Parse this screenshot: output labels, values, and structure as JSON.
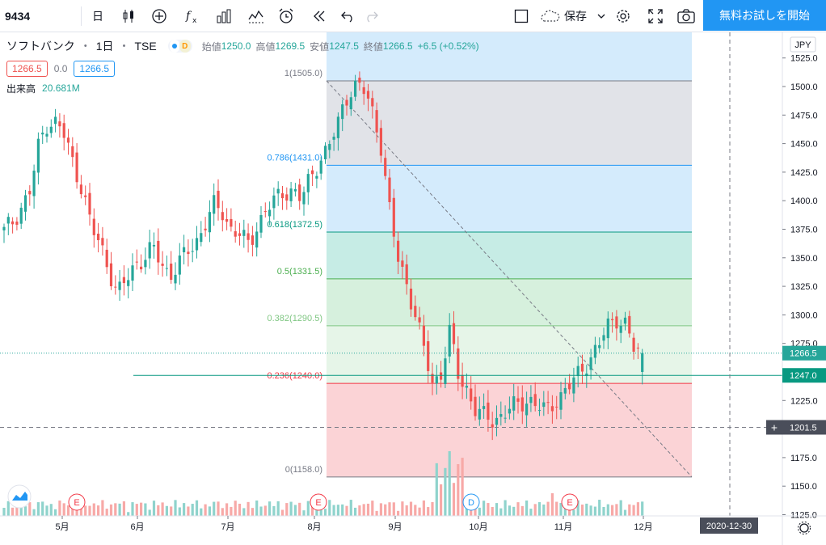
{
  "toolbar": {
    "symbol": "9434",
    "interval": "日",
    "save_label": "保存",
    "trial_label": "無料お試しを開始"
  },
  "legend": {
    "name": "ソフトバンク",
    "interval": "1日",
    "exchange": "TSE",
    "delay_badge": "D",
    "open_label": "始値",
    "open": "1250.0",
    "high_label": "高値",
    "high": "1269.5",
    "low_label": "安値",
    "low": "1247.5",
    "close_label": "終値",
    "close": "1266.5",
    "change": "+6.5 (+0.52%)",
    "bid": "1266.5",
    "spread": "0.0",
    "ask": "1266.5",
    "volume_label": "出来高",
    "volume": "20.681M"
  },
  "price_axis": {
    "currency": "JPY",
    "ticks": [
      "1525.0",
      "1500.0",
      "1475.0",
      "1450.0",
      "1425.0",
      "1400.0",
      "1375.0",
      "1350.0",
      "1325.0",
      "1300.0",
      "1275.0",
      "1250.0",
      "1225.0",
      "1200.0",
      "1175.0",
      "1150.0",
      "1125.0"
    ],
    "last_price": "1266.5",
    "line_price": "1247.0",
    "crosshair_price": "1201.5"
  },
  "time_axis": {
    "ticks": [
      "5月",
      "6月",
      "7月",
      "8月",
      "9月",
      "10月",
      "11月",
      "12月"
    ],
    "crosshair_date": "2020-12-30"
  },
  "fibonacci": {
    "levels": [
      {
        "label": "1(1505.0)",
        "color": "#787b86"
      },
      {
        "label": "0.786(1431.0)",
        "color": "#2196f3"
      },
      {
        "label": "0.618(1372.5)",
        "color": "#089981"
      },
      {
        "label": "0.5(1331.5)",
        "color": "#4caf50"
      },
      {
        "label": "0.382(1290.5)",
        "color": "#81c784"
      },
      {
        "label": "0.236(1240.0)",
        "color": "#f23645"
      },
      {
        "label": "0(1158.0)",
        "color": "#787b86"
      }
    ]
  },
  "events": [
    {
      "label": "E",
      "color": "#f23645"
    },
    {
      "label": "E",
      "color": "#f23645"
    },
    {
      "label": "D",
      "color": "#2196f3"
    },
    {
      "label": "E",
      "color": "#f23645"
    }
  ],
  "colors": {
    "up": "#26a69a",
    "down": "#ef5350",
    "accent": "#2196f3"
  },
  "chart_data": {
    "type": "candlestick",
    "x_ticks": [
      "5月",
      "6月",
      "7月",
      "8月",
      "9月",
      "10月",
      "11月",
      "12月"
    ],
    "ylim": [
      1125,
      1525
    ],
    "last": {
      "open": 1250.0,
      "high": 1269.5,
      "low": 1247.5,
      "close": 1266.5,
      "volume": "20.681M"
    },
    "fib_levels": [
      1505.0,
      1431.0,
      1372.5,
      1331.5,
      1290.5,
      1240.0,
      1158.0
    ],
    "path": [
      1373,
      1382,
      1395,
      1408,
      1450,
      1470,
      1468,
      1455,
      1430,
      1410,
      1375,
      1362,
      1340,
      1318,
      1330,
      1345,
      1350,
      1358,
      1345,
      1335,
      1345,
      1355,
      1365,
      1380,
      1395,
      1390,
      1375,
      1370,
      1360,
      1380,
      1392,
      1400,
      1408,
      1410,
      1400,
      1420,
      1435,
      1445,
      1462,
      1490,
      1500,
      1498,
      1482,
      1455,
      1395,
      1350,
      1330,
      1300,
      1270,
      1240,
      1250,
      1285,
      1245,
      1235,
      1215,
      1210,
      1208,
      1213,
      1218,
      1222,
      1227,
      1220,
      1215,
      1225,
      1232,
      1240,
      1252,
      1262,
      1272,
      1290,
      1298,
      1292,
      1270,
      1266
    ]
  }
}
